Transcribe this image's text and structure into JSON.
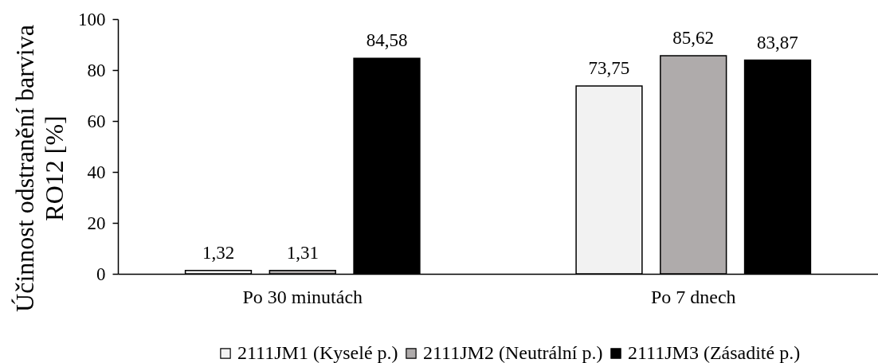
{
  "chart_data": {
    "type": "bar",
    "ylabel": "Účinnost odstranění barviva\nRO12 [%]",
    "categories": [
      "Po 30 minutách",
      "Po 7 dnech"
    ],
    "series": [
      {
        "name": "2111JM1 (Kyselé p.)",
        "color": "#f2f2f2",
        "values": [
          1.32,
          73.75
        ],
        "value_labels": [
          "1,32",
          "73,75"
        ]
      },
      {
        "name": "2111JM2 (Neutrální p.)",
        "color": "#afabab",
        "values": [
          1.31,
          85.62
        ],
        "value_labels": [
          "1,31",
          "85,62"
        ]
      },
      {
        "name": "2111JM3 (Zásadité p.)",
        "color": "#000000",
        "values": [
          84.58,
          83.87
        ],
        "value_labels": [
          "84,58",
          "83,87"
        ]
      }
    ],
    "ylim": [
      0,
      100
    ],
    "yticks": [
      0,
      20,
      40,
      60,
      80,
      100
    ],
    "grid": false,
    "legend": "bottom"
  }
}
